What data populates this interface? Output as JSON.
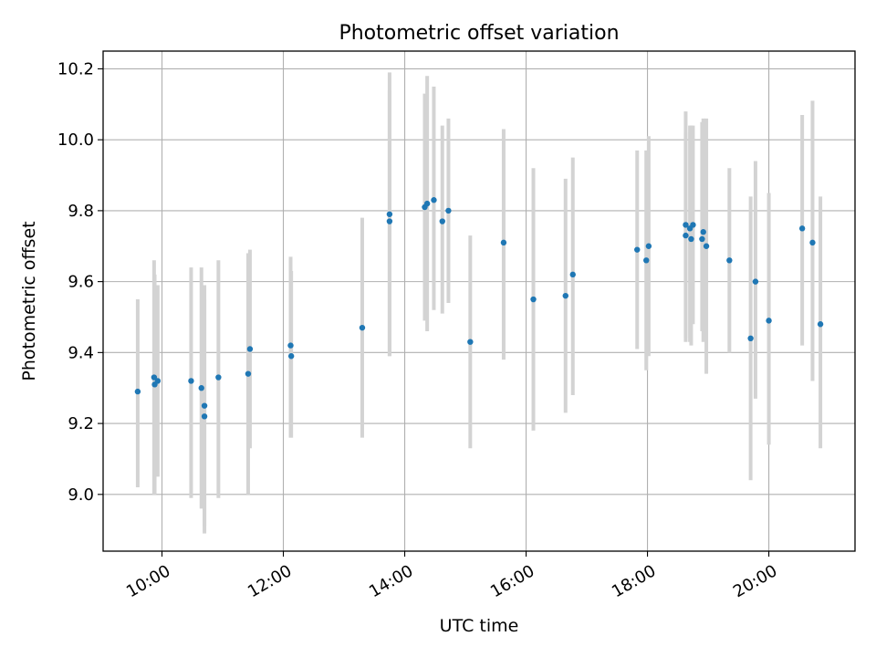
{
  "chart_data": {
    "type": "scatter",
    "title": "Photometric offset variation",
    "xlabel": "UTC time",
    "ylabel": "Photometric offset",
    "grid": true,
    "xlim_hours": [
      9.03,
      21.42
    ],
    "ylim": [
      8.84,
      10.25
    ],
    "x_ticks": [
      {
        "hours": 10,
        "label": "10:00"
      },
      {
        "hours": 12,
        "label": "12:00"
      },
      {
        "hours": 14,
        "label": "14:00"
      },
      {
        "hours": 16,
        "label": "16:00"
      },
      {
        "hours": 18,
        "label": "18:00"
      },
      {
        "hours": 20,
        "label": "20:00"
      }
    ],
    "y_ticks": [
      {
        "value": 9.0,
        "label": "9.0"
      },
      {
        "value": 9.2,
        "label": "9.2"
      },
      {
        "value": 9.4,
        "label": "9.4"
      },
      {
        "value": 9.6,
        "label": "9.6"
      },
      {
        "value": 9.8,
        "label": "9.8"
      },
      {
        "value": 10.0,
        "label": "10.0"
      },
      {
        "value": 10.2,
        "label": "10.2"
      }
    ],
    "colors": {
      "point": "#1f77b4",
      "errorbar": "#d3d3d3",
      "grid": "#b0b0b0",
      "axes": "#000000"
    },
    "series": [
      {
        "name": "offset",
        "points": [
          {
            "x": 9.6,
            "y": 9.29,
            "ylow": 9.02,
            "yhigh": 9.55
          },
          {
            "x": 9.87,
            "y": 9.33,
            "ylow": 9.0,
            "yhigh": 9.66
          },
          {
            "x": 9.88,
            "y": 9.31,
            "ylow": 9.0,
            "yhigh": 9.62
          },
          {
            "x": 9.93,
            "y": 9.32,
            "ylow": 9.05,
            "yhigh": 9.59
          },
          {
            "x": 10.48,
            "y": 9.32,
            "ylow": 8.99,
            "yhigh": 9.64
          },
          {
            "x": 10.65,
            "y": 9.3,
            "ylow": 8.96,
            "yhigh": 9.64
          },
          {
            "x": 10.7,
            "y": 9.25,
            "ylow": 8.91,
            "yhigh": 9.59
          },
          {
            "x": 10.7,
            "y": 9.22,
            "ylow": 8.89,
            "yhigh": 9.55
          },
          {
            "x": 10.93,
            "y": 9.33,
            "ylow": 8.99,
            "yhigh": 9.66
          },
          {
            "x": 11.42,
            "y": 9.34,
            "ylow": 9.0,
            "yhigh": 9.68
          },
          {
            "x": 11.45,
            "y": 9.41,
            "ylow": 9.13,
            "yhigh": 9.69
          },
          {
            "x": 12.12,
            "y": 9.42,
            "ylow": 9.16,
            "yhigh": 9.67
          },
          {
            "x": 12.13,
            "y": 9.39,
            "ylow": 9.16,
            "yhigh": 9.63
          },
          {
            "x": 13.3,
            "y": 9.47,
            "ylow": 9.16,
            "yhigh": 9.78
          },
          {
            "x": 13.75,
            "y": 9.79,
            "ylow": 9.39,
            "yhigh": 10.19
          },
          {
            "x": 13.75,
            "y": 9.77,
            "ylow": 9.39,
            "yhigh": 10.14
          },
          {
            "x": 14.33,
            "y": 9.81,
            "ylow": 9.49,
            "yhigh": 10.13
          },
          {
            "x": 14.37,
            "y": 9.82,
            "ylow": 9.46,
            "yhigh": 10.18
          },
          {
            "x": 14.48,
            "y": 9.83,
            "ylow": 9.52,
            "yhigh": 10.15
          },
          {
            "x": 14.62,
            "y": 9.77,
            "ylow": 9.51,
            "yhigh": 10.04
          },
          {
            "x": 14.72,
            "y": 9.8,
            "ylow": 9.54,
            "yhigh": 10.06
          },
          {
            "x": 15.08,
            "y": 9.43,
            "ylow": 9.13,
            "yhigh": 9.73
          },
          {
            "x": 15.63,
            "y": 9.71,
            "ylow": 9.38,
            "yhigh": 10.03
          },
          {
            "x": 16.12,
            "y": 9.55,
            "ylow": 9.18,
            "yhigh": 9.92
          },
          {
            "x": 16.65,
            "y": 9.56,
            "ylow": 9.23,
            "yhigh": 9.89
          },
          {
            "x": 16.77,
            "y": 9.62,
            "ylow": 9.28,
            "yhigh": 9.95
          },
          {
            "x": 17.83,
            "y": 9.69,
            "ylow": 9.41,
            "yhigh": 9.97
          },
          {
            "x": 17.98,
            "y": 9.66,
            "ylow": 9.35,
            "yhigh": 9.97
          },
          {
            "x": 18.02,
            "y": 9.7,
            "ylow": 9.39,
            "yhigh": 10.01
          },
          {
            "x": 18.63,
            "y": 9.76,
            "ylow": 9.43,
            "yhigh": 10.08
          },
          {
            "x": 18.63,
            "y": 9.73,
            "ylow": 9.44,
            "yhigh": 10.02
          },
          {
            "x": 18.7,
            "y": 9.75,
            "ylow": 9.43,
            "yhigh": 10.04
          },
          {
            "x": 18.72,
            "y": 9.72,
            "ylow": 9.42,
            "yhigh": 10.04
          },
          {
            "x": 18.75,
            "y": 9.76,
            "ylow": 9.48,
            "yhigh": 10.04
          },
          {
            "x": 18.9,
            "y": 9.72,
            "ylow": 9.46,
            "yhigh": 10.05
          },
          {
            "x": 18.92,
            "y": 9.74,
            "ylow": 9.43,
            "yhigh": 10.06
          },
          {
            "x": 18.97,
            "y": 9.7,
            "ylow": 9.34,
            "yhigh": 10.06
          },
          {
            "x": 19.35,
            "y": 9.66,
            "ylow": 9.4,
            "yhigh": 9.92
          },
          {
            "x": 19.7,
            "y": 9.44,
            "ylow": 9.04,
            "yhigh": 9.84
          },
          {
            "x": 19.78,
            "y": 9.6,
            "ylow": 9.27,
            "yhigh": 9.94
          },
          {
            "x": 20.0,
            "y": 9.49,
            "ylow": 9.14,
            "yhigh": 9.85
          },
          {
            "x": 20.55,
            "y": 9.75,
            "ylow": 9.42,
            "yhigh": 10.07
          },
          {
            "x": 20.72,
            "y": 9.71,
            "ylow": 9.32,
            "yhigh": 10.11
          },
          {
            "x": 20.85,
            "y": 9.48,
            "ylow": 9.13,
            "yhigh": 9.84
          }
        ]
      }
    ]
  }
}
